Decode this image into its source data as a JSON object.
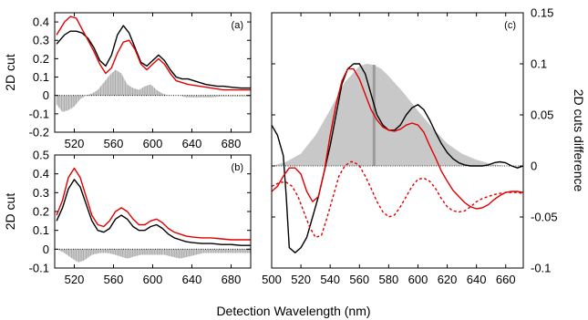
{
  "figure": {
    "xlabel": "Detection Wavelength (nm)"
  },
  "colors": {
    "black_series": "#000000",
    "red_series": "#e00000",
    "fill": "#c8c8c8",
    "fill_edge": "#9a9a9a"
  },
  "chart_data": [
    {
      "type": "line",
      "panel_label": "(a)",
      "ylabel": "2D cut",
      "xlim": [
        500,
        700
      ],
      "ylim": [
        -0.2,
        0.45
      ],
      "xticks": [
        520,
        560,
        600,
        640,
        680
      ],
      "yticks": [
        -0.2,
        -0.1,
        0,
        0.1,
        0.2,
        0.3,
        0.4
      ],
      "ytick_labels": [
        "-0.2",
        "-0.1",
        "0",
        "0.1",
        "0.2",
        "0.3",
        "0.4"
      ],
      "grid": false,
      "series": [
        {
          "color": "black",
          "x": [
            502,
            510,
            516,
            522,
            528,
            534,
            540,
            546,
            552,
            558,
            564,
            570,
            576,
            582,
            588,
            594,
            600,
            606,
            612,
            618,
            624,
            630,
            636,
            642,
            648,
            654,
            660,
            666,
            672,
            680,
            690,
            700
          ],
          "y": [
            0.28,
            0.33,
            0.35,
            0.35,
            0.34,
            0.31,
            0.26,
            0.19,
            0.16,
            0.22,
            0.33,
            0.38,
            0.34,
            0.26,
            0.18,
            0.16,
            0.19,
            0.22,
            0.19,
            0.14,
            0.1,
            0.09,
            0.09,
            0.08,
            0.07,
            0.06,
            0.055,
            0.05,
            0.05,
            0.045,
            0.04,
            0.04
          ]
        },
        {
          "color": "red",
          "x": [
            502,
            510,
            516,
            522,
            528,
            534,
            540,
            546,
            552,
            558,
            564,
            570,
            576,
            582,
            588,
            594,
            600,
            606,
            612,
            618,
            624,
            630,
            636,
            642,
            648,
            654,
            660,
            666,
            672,
            680,
            690,
            700
          ],
          "y": [
            0.33,
            0.4,
            0.43,
            0.42,
            0.36,
            0.3,
            0.24,
            0.17,
            0.12,
            0.15,
            0.23,
            0.29,
            0.3,
            0.25,
            0.17,
            0.14,
            0.17,
            0.2,
            0.17,
            0.12,
            0.08,
            0.07,
            0.06,
            0.055,
            0.05,
            0.045,
            0.04,
            0.035,
            0.03,
            0.03,
            0.03,
            0.03
          ]
        },
        {
          "color": "gray-fill",
          "name": "difference",
          "x": [
            502,
            508,
            514,
            520,
            526,
            532,
            538,
            544,
            550,
            556,
            562,
            568,
            574,
            580,
            586,
            592,
            598,
            604,
            610,
            616,
            622,
            628,
            634,
            640,
            650,
            660,
            670,
            680,
            690,
            700
          ],
          "y": [
            -0.05,
            -0.09,
            -0.08,
            -0.06,
            -0.02,
            0.0,
            0.01,
            0.03,
            0.07,
            0.11,
            0.14,
            0.12,
            0.06,
            0.04,
            0.03,
            0.05,
            0.06,
            0.03,
            0.01,
            0.0,
            0.0,
            0.0,
            -0.01,
            -0.01,
            -0.01,
            -0.01,
            -0.005,
            -0.005,
            -0.005,
            -0.005
          ]
        }
      ]
    },
    {
      "type": "line",
      "panel_label": "(b)",
      "ylabel": "2D cut",
      "xlim": [
        500,
        700
      ],
      "ylim": [
        -0.1,
        0.5
      ],
      "xticks": [
        520,
        560,
        600,
        640,
        680
      ],
      "yticks": [
        -0.1,
        0,
        0.1,
        0.2,
        0.3,
        0.4,
        0.5
      ],
      "ytick_labels": [
        "-0.1",
        "0",
        "0.1",
        "0.2",
        "0.3",
        "0.4",
        "0.5"
      ],
      "grid": false,
      "series": [
        {
          "color": "black",
          "x": [
            502,
            508,
            514,
            520,
            526,
            532,
            538,
            544,
            550,
            556,
            562,
            568,
            574,
            580,
            586,
            592,
            598,
            604,
            610,
            616,
            622,
            628,
            634,
            640,
            650,
            660,
            670,
            680,
            690,
            700
          ],
          "y": [
            0.15,
            0.22,
            0.32,
            0.37,
            0.33,
            0.24,
            0.15,
            0.1,
            0.09,
            0.11,
            0.16,
            0.18,
            0.16,
            0.12,
            0.1,
            0.1,
            0.12,
            0.13,
            0.11,
            0.08,
            0.06,
            0.05,
            0.04,
            0.035,
            0.03,
            0.03,
            0.025,
            0.025,
            0.02,
            0.02
          ]
        },
        {
          "color": "red",
          "x": [
            502,
            508,
            514,
            520,
            526,
            532,
            538,
            544,
            550,
            556,
            562,
            568,
            574,
            580,
            586,
            592,
            598,
            604,
            610,
            616,
            622,
            628,
            634,
            640,
            650,
            660,
            670,
            680,
            690,
            700
          ],
          "y": [
            0.18,
            0.26,
            0.38,
            0.43,
            0.38,
            0.28,
            0.18,
            0.13,
            0.12,
            0.15,
            0.2,
            0.22,
            0.2,
            0.16,
            0.13,
            0.13,
            0.15,
            0.16,
            0.14,
            0.11,
            0.09,
            0.08,
            0.07,
            0.065,
            0.06,
            0.06,
            0.055,
            0.05,
            0.05,
            0.05
          ]
        },
        {
          "color": "gray-fill",
          "name": "difference",
          "x": [
            502,
            510,
            518,
            524,
            530,
            538,
            546,
            554,
            562,
            568,
            574,
            580,
            588,
            596,
            604,
            612,
            620,
            628,
            636,
            644,
            652,
            660,
            670,
            680,
            690,
            700
          ],
          "y": [
            0.0,
            -0.02,
            -0.05,
            -0.07,
            -0.06,
            -0.03,
            -0.02,
            -0.02,
            -0.03,
            -0.04,
            -0.05,
            -0.04,
            -0.03,
            -0.03,
            -0.03,
            -0.03,
            -0.04,
            -0.05,
            -0.04,
            -0.03,
            -0.02,
            -0.02,
            -0.02,
            -0.02,
            -0.02,
            -0.02
          ]
        }
      ]
    },
    {
      "type": "line",
      "panel_label": "(c)",
      "ylabel": "2D cuts difference",
      "xlim": [
        500,
        672
      ],
      "ylim": [
        -0.1,
        0.15
      ],
      "xticks": [
        500,
        520,
        540,
        560,
        580,
        600,
        620,
        640,
        660
      ],
      "yticks": [
        -0.1,
        -0.05,
        0,
        0.05,
        0.1,
        0.15
      ],
      "ytick_labels": [
        "-0.1",
        "-0.05",
        "0",
        "0.05",
        "0.1",
        "0.15"
      ],
      "grid": false,
      "series": [
        {
          "color": "gray-fill",
          "name": "gaussian",
          "x": [
            500,
            510,
            520,
            530,
            540,
            550,
            560,
            565,
            570,
            575,
            580,
            590,
            600,
            610,
            620,
            630,
            640,
            650,
            660,
            668
          ],
          "y": [
            0.0,
            0.004,
            0.012,
            0.03,
            0.055,
            0.082,
            0.098,
            0.1,
            0.099,
            0.095,
            0.088,
            0.072,
            0.054,
            0.037,
            0.022,
            0.012,
            0.006,
            0.002,
            0.0,
            0.0
          ]
        },
        {
          "color": "black",
          "x": [
            500,
            504,
            508,
            510,
            512,
            516,
            520,
            524,
            528,
            532,
            536,
            540,
            544,
            548,
            552,
            556,
            560,
            564,
            568,
            572,
            576,
            580,
            584,
            588,
            592,
            596,
            600,
            604,
            608,
            612,
            616,
            620,
            624,
            628,
            632,
            636,
            640,
            644,
            648,
            652,
            656,
            660,
            664,
            668,
            672
          ],
          "y": [
            0.04,
            0.03,
            0.01,
            -0.03,
            -0.08,
            -0.085,
            -0.08,
            -0.07,
            -0.05,
            -0.03,
            -0.005,
            0.02,
            0.05,
            0.08,
            0.095,
            0.1,
            0.1,
            0.09,
            0.07,
            0.05,
            0.04,
            0.035,
            0.035,
            0.04,
            0.05,
            0.057,
            0.06,
            0.055,
            0.045,
            0.033,
            0.022,
            0.013,
            0.007,
            0.003,
            0.001,
            0.0,
            0.0,
            0.0,
            0.001,
            0.003,
            0.004,
            0.003,
            0.0,
            -0.002,
            0.0
          ]
        },
        {
          "color": "red",
          "x": [
            500,
            504,
            508,
            512,
            516,
            520,
            524,
            528,
            532,
            536,
            540,
            544,
            548,
            552,
            556,
            560,
            564,
            568,
            572,
            576,
            580,
            584,
            588,
            592,
            596,
            600,
            604,
            608,
            612,
            616,
            620,
            624,
            628,
            632,
            636,
            640,
            644,
            648,
            652,
            656,
            660,
            664,
            668,
            672
          ],
          "y": [
            -0.025,
            -0.02,
            -0.01,
            -0.002,
            -0.002,
            -0.008,
            -0.025,
            -0.035,
            -0.03,
            -0.005,
            0.03,
            0.06,
            0.083,
            0.095,
            0.095,
            0.085,
            0.07,
            0.055,
            0.045,
            0.038,
            0.035,
            0.034,
            0.036,
            0.04,
            0.042,
            0.04,
            0.033,
            0.02,
            0.008,
            -0.005,
            -0.015,
            -0.024,
            -0.03,
            -0.036,
            -0.04,
            -0.042,
            -0.041,
            -0.038,
            -0.033,
            -0.029,
            -0.026,
            -0.025,
            -0.025,
            -0.026
          ]
        },
        {
          "color": "red-dashed",
          "x": [
            500,
            506,
            510,
            514,
            518,
            522,
            526,
            530,
            534,
            538,
            542,
            546,
            550,
            554,
            556,
            560,
            564,
            568,
            572,
            576,
            580,
            584,
            588,
            592,
            596,
            600,
            604,
            608,
            612,
            616,
            620,
            624,
            628,
            632,
            636,
            640,
            644,
            648,
            652,
            656,
            660,
            664,
            668,
            672
          ],
          "y": [
            -0.02,
            -0.016,
            -0.016,
            -0.02,
            -0.03,
            -0.045,
            -0.06,
            -0.07,
            -0.068,
            -0.05,
            -0.03,
            -0.01,
            0.0,
            0.004,
            0.004,
            0.0,
            -0.01,
            -0.022,
            -0.035,
            -0.045,
            -0.05,
            -0.048,
            -0.04,
            -0.03,
            -0.02,
            -0.013,
            -0.012,
            -0.015,
            -0.022,
            -0.032,
            -0.04,
            -0.044,
            -0.045,
            -0.044,
            -0.04,
            -0.035,
            -0.032,
            -0.03,
            -0.028,
            -0.027,
            -0.026,
            -0.026,
            -0.026,
            -0.027
          ]
        }
      ]
    }
  ]
}
